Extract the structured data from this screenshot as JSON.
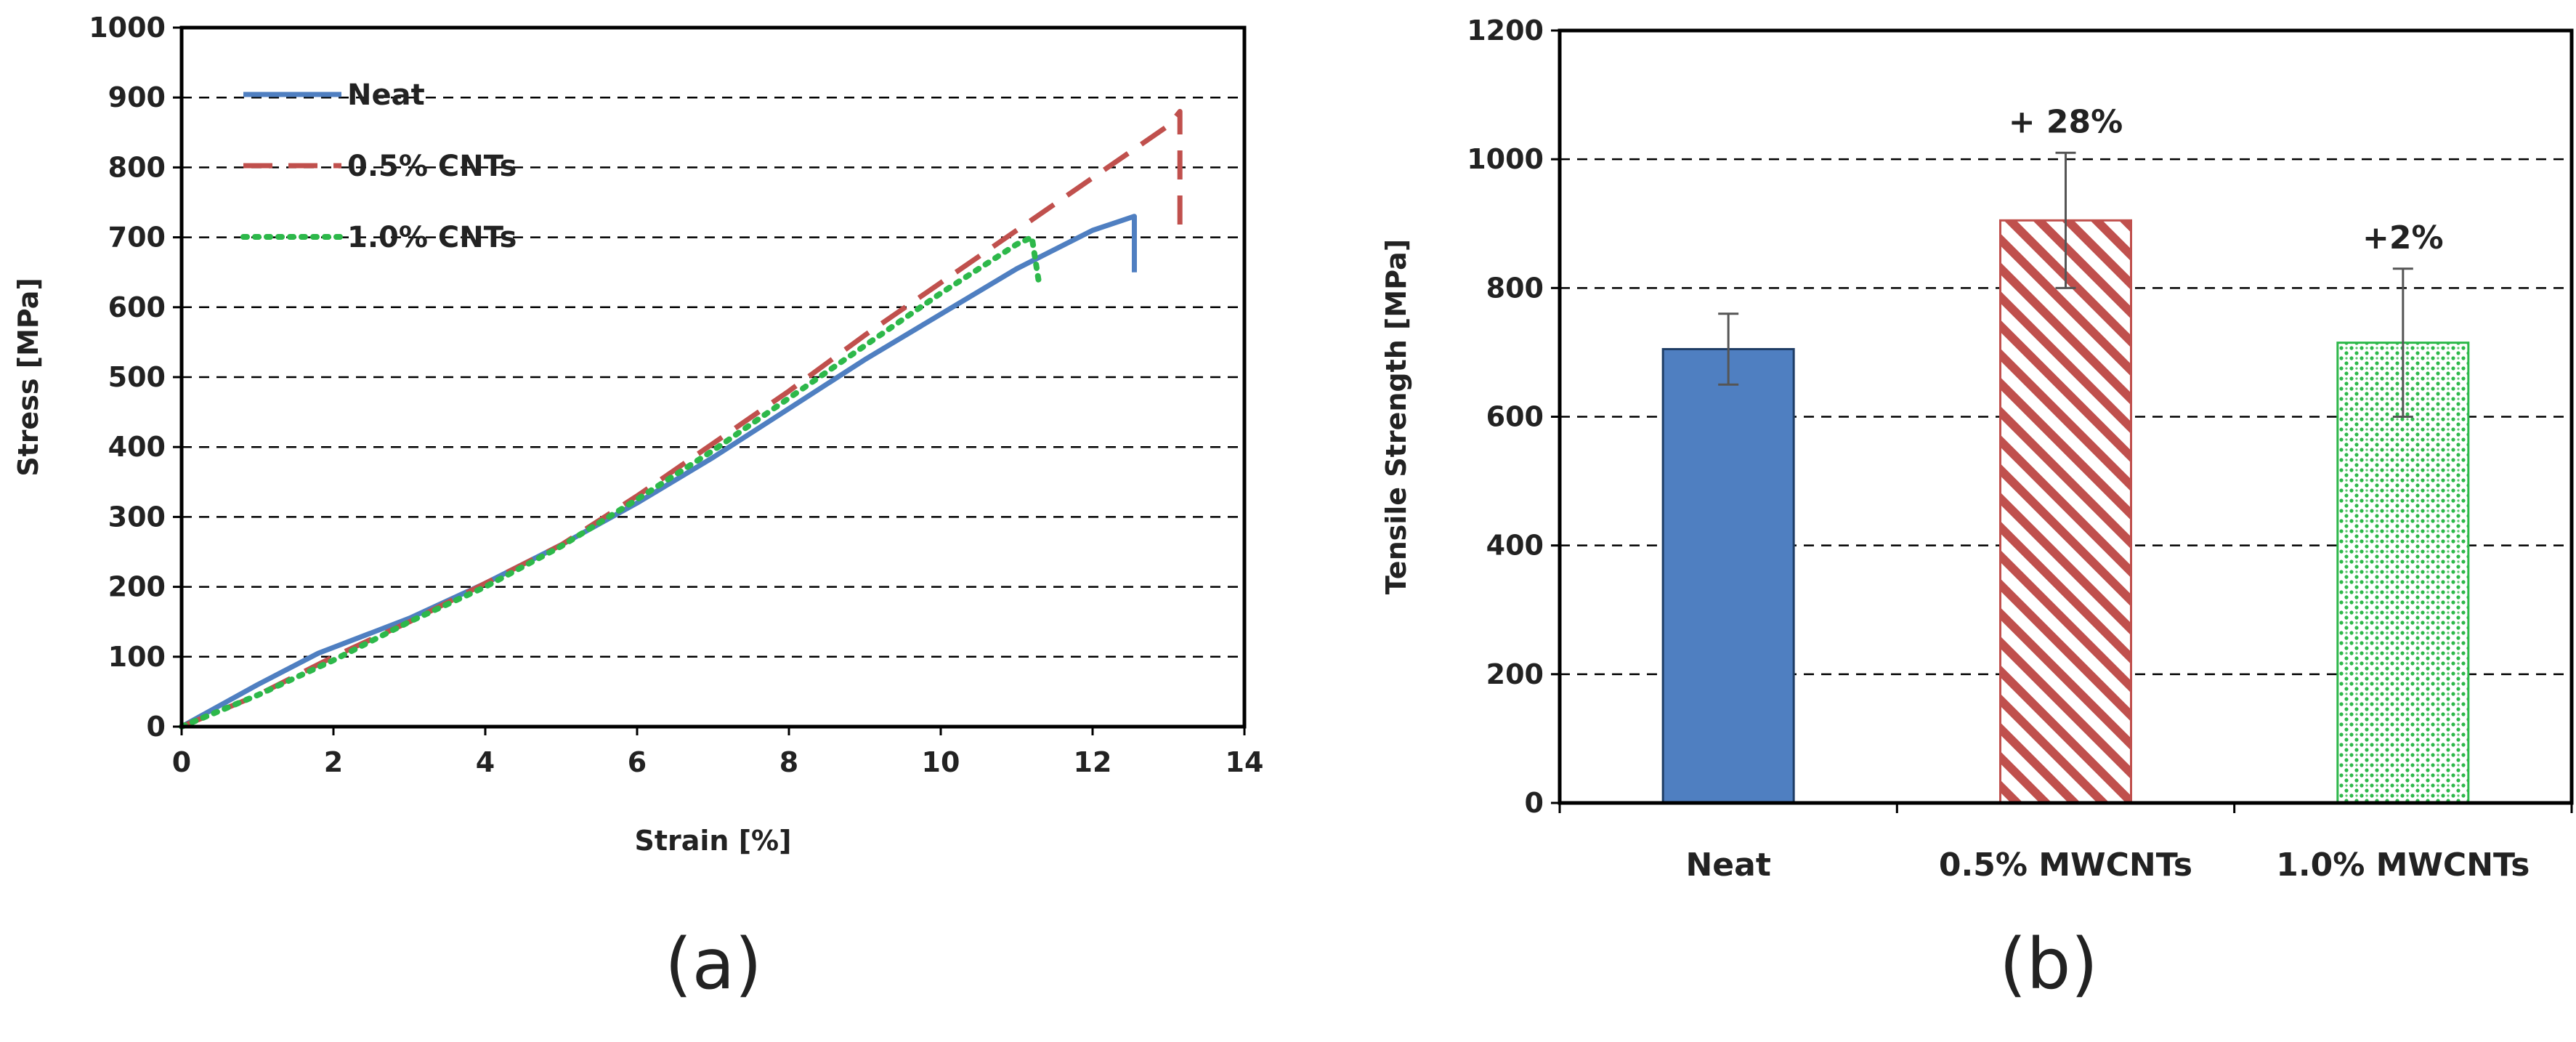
{
  "chart_data": [
    {
      "type": "line",
      "panel_label": "(a)",
      "xlabel": "Strain [%]",
      "ylabel": "Stress [MPa]",
      "xlim": [
        0,
        14
      ],
      "ylim": [
        0,
        1000
      ],
      "xticks": [
        0,
        2,
        4,
        6,
        8,
        10,
        12,
        14
      ],
      "yticks": [
        0,
        100,
        200,
        300,
        400,
        500,
        600,
        700,
        800,
        900,
        1000
      ],
      "grid": "horizontal-dashed",
      "legend_position": "top-left",
      "series": [
        {
          "name": "Neat",
          "color": "#4F7FC1",
          "style": "solid",
          "x": [
            0,
            1,
            1.8,
            3,
            4,
            5,
            6,
            7,
            8,
            9,
            10,
            11,
            12,
            12.55,
            12.55
          ],
          "y": [
            0,
            60,
            105,
            155,
            205,
            260,
            320,
            385,
            455,
            525,
            590,
            655,
            710,
            730,
            650
          ]
        },
        {
          "name": "0.5% CNTs",
          "color": "#C0504D",
          "style": "dashed",
          "x": [
            0,
            1,
            2,
            3,
            4,
            5,
            6,
            7,
            8,
            9,
            10,
            11,
            12,
            13,
            13.15,
            13.15
          ],
          "y": [
            0,
            45,
            100,
            150,
            205,
            260,
            330,
            405,
            480,
            560,
            635,
            710,
            785,
            860,
            880,
            700
          ]
        },
        {
          "name": "1.0% CNTs",
          "color": "#2DB84A",
          "style": "dotted",
          "x": [
            0,
            1,
            2,
            3,
            4,
            5,
            6,
            7,
            8,
            9,
            10,
            11,
            11.2,
            11.3
          ],
          "y": [
            0,
            45,
            95,
            150,
            200,
            258,
            325,
            395,
            470,
            545,
            620,
            690,
            700,
            630
          ]
        }
      ]
    },
    {
      "type": "bar",
      "panel_label": "(b)",
      "xlabel": "",
      "ylabel": "Tensile Strength [MPa]",
      "ylim": [
        0,
        1200
      ],
      "yticks": [
        0,
        200,
        400,
        600,
        800,
        1000,
        1200
      ],
      "grid": "horizontal-dashed",
      "categories": [
        "Neat",
        "0.5% MWCNTs",
        "1.0% MWCNTs"
      ],
      "values": [
        705,
        905,
        715
      ],
      "errors": [
        55,
        105,
        115
      ],
      "annotations": [
        "",
        "+ 28%",
        "+2%"
      ],
      "colors": [
        "#4F7FC1",
        "#C0504D",
        "#2DB84A"
      ],
      "fills": [
        "solid",
        "diagonal-hatch",
        "dots"
      ]
    }
  ]
}
